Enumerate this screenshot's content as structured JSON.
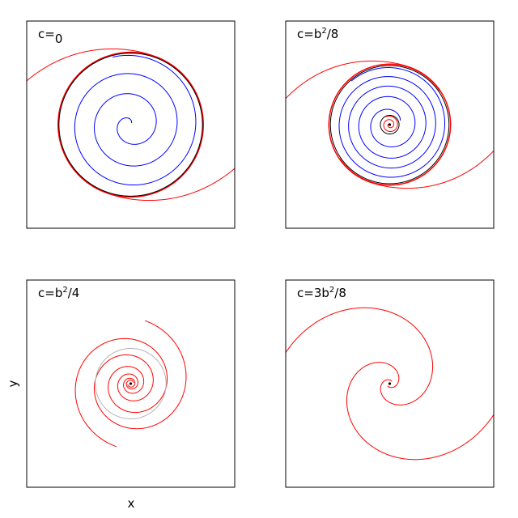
{
  "chart_data": {
    "type": "line",
    "xlabel": "x",
    "ylabel": "y",
    "colors": {
      "red": "#ff0000",
      "blue": "#0000ff",
      "black": "#000000",
      "gray": "#b4b4b4"
    },
    "panels": [
      {
        "title_base": "c=",
        "title_sup": "",
        "title_tail": "0",
        "xlim": [
          -1,
          1
        ],
        "ylim": [
          -1,
          1
        ],
        "series": [
          {
            "kind": "outer-spiral",
            "color": "#ff0000",
            "r0": 0.69,
            "k": 2.2,
            "phase": 0.55,
            "turns_in": 1.1,
            "turns_out": 0.55
          },
          {
            "kind": "limit-cycle",
            "color": "#ff0000",
            "r": 0.7
          },
          {
            "kind": "limit-cycle",
            "color": "#000000",
            "r": 0.69
          },
          {
            "kind": "inner-spiral",
            "color": "#0000ff",
            "r0": 0.02,
            "r1": 0.675,
            "turns": 3.1,
            "phase": 1.2
          }
        ]
      },
      {
        "title_base": "c=b",
        "title_sup": "2",
        "title_tail": "/8",
        "xlim": [
          -1,
          1
        ],
        "ylim": [
          -1,
          1
        ],
        "series": [
          {
            "kind": "outer-spiral",
            "color": "#ff0000",
            "r0": 0.58,
            "k": 2.2,
            "phase": 0.6,
            "turns_in": 1.1,
            "turns_out": 0.55
          },
          {
            "kind": "limit-cycle",
            "color": "#ff0000",
            "r": 0.585
          },
          {
            "kind": "limit-cycle",
            "color": "#000000",
            "r": 0.57
          },
          {
            "kind": "inner-spiral",
            "color": "#0000ff",
            "r0": 0.11,
            "r1": 0.56,
            "turns": 4.3,
            "phase": 0.4
          },
          {
            "kind": "limit-cycle",
            "color": "#000000",
            "r": 0.09
          },
          {
            "kind": "inner-spiral",
            "color": "#ff0000",
            "r0": 0.005,
            "r1": 0.085,
            "turns": 2.0,
            "phase": 2.0
          },
          {
            "kind": "dot",
            "color": "#000000",
            "x": 0.0,
            "y": 0.0
          }
        ]
      },
      {
        "title_base": "c=b",
        "title_sup": "2",
        "title_tail": "/4",
        "xlim": [
          -1,
          1
        ],
        "ylim": [
          -1,
          1
        ],
        "series": [
          {
            "kind": "outer-spiral",
            "color": "#ff0000",
            "r0": 0.03,
            "k": 1.55,
            "phase": 0.4,
            "turns_in": 0.0,
            "turns_out": 3.15
          },
          {
            "kind": "limit-cycle",
            "color": "#b4b4b4",
            "r": 0.34
          },
          {
            "kind": "dot",
            "color": "#000000",
            "x": 0.0,
            "y": 0.0
          }
        ]
      },
      {
        "title_base": "c=3b",
        "title_sup": "2",
        "title_tail": "/8",
        "xlim": [
          -1,
          1
        ],
        "ylim": [
          -1,
          1
        ],
        "series": [
          {
            "kind": "outer-spiral",
            "color": "#ff0000",
            "r0": 0.03,
            "k": 3.6,
            "phase": 0.9,
            "turns_in": 0.0,
            "turns_out": 1.45
          },
          {
            "kind": "dot",
            "color": "#000000",
            "x": 0.0,
            "y": 0.0
          }
        ]
      }
    ]
  }
}
